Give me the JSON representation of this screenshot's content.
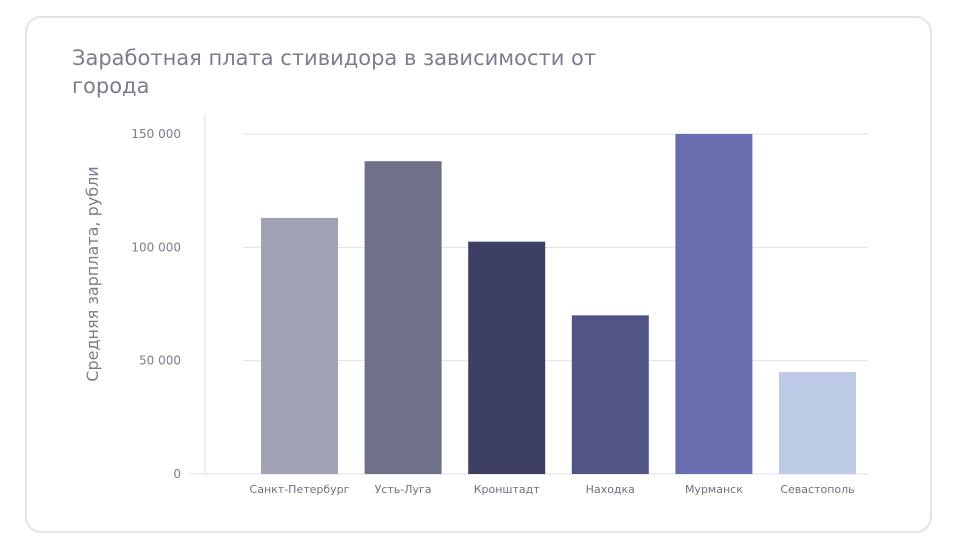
{
  "chart_data": {
    "type": "bar",
    "title": "Заработная плата стивидора в зависимости от города",
    "xlabel": "",
    "ylabel": "Средняя зарплата, рубли",
    "categories": [
      "Санкт-Петербург",
      "Усть-Луга",
      "Кронштадт",
      "Находка",
      "Мурманск",
      "Севастополь"
    ],
    "values": [
      113000,
      138000,
      102500,
      70000,
      150000,
      45000
    ],
    "colors": [
      "#a0a1b3",
      "#6e6f89",
      "#3d3f62",
      "#515586",
      "#686ead",
      "#bdcae6"
    ],
    "ylim": [
      0,
      150000
    ],
    "yticks": [
      {
        "value": 0,
        "label": "0"
      },
      {
        "value": 50000,
        "label": "50 000"
      },
      {
        "value": 100000,
        "label": "100 000"
      },
      {
        "value": 150000,
        "label": "150 000"
      }
    ],
    "grid": true,
    "legend": "none"
  }
}
